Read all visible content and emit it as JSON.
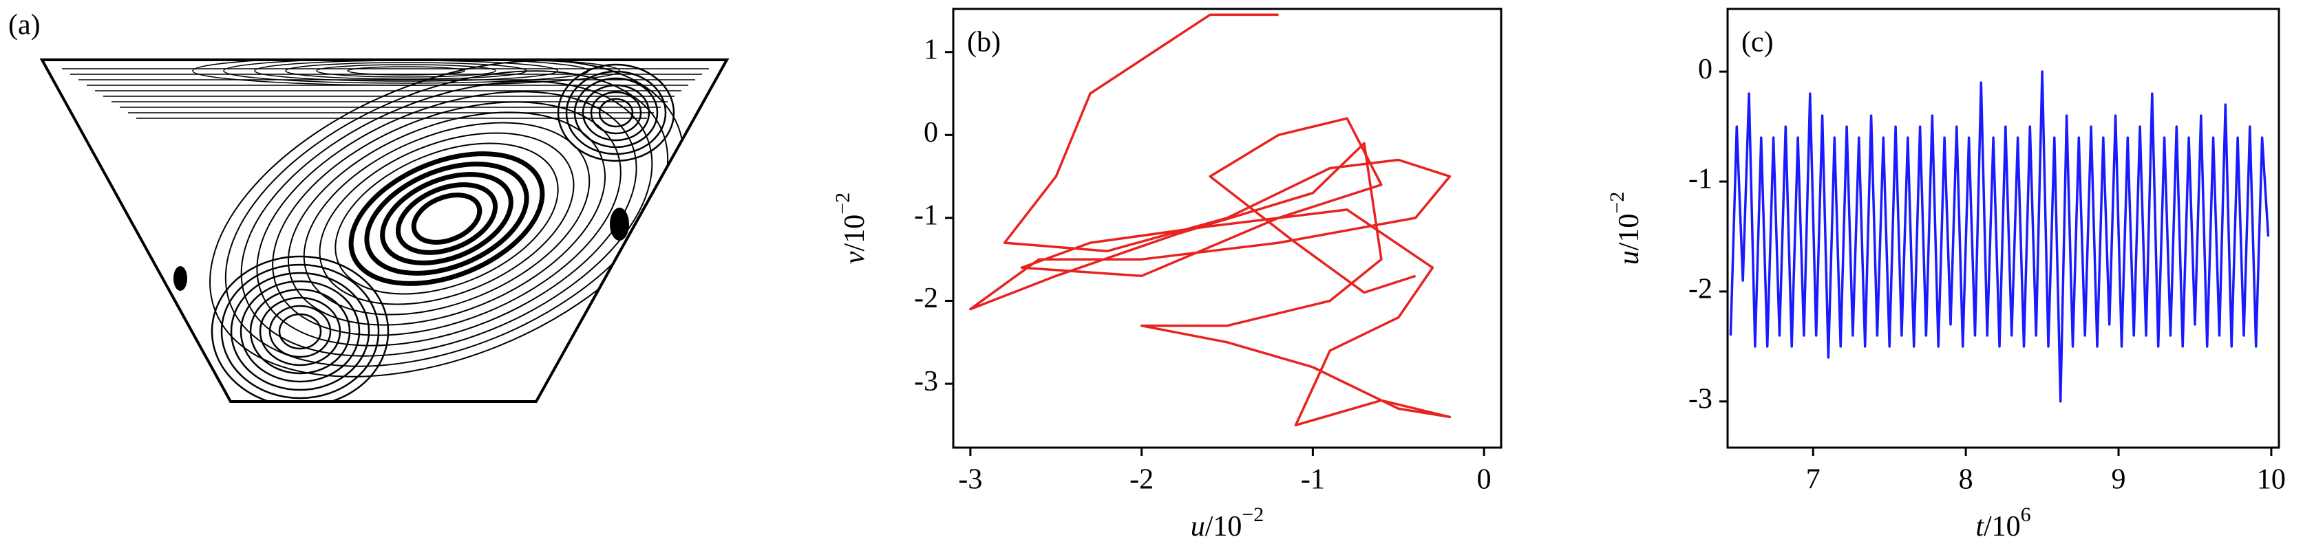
{
  "chart_data": [
    {
      "type": "streamline",
      "label": "(a)"
    },
    {
      "type": "line",
      "label": "(b)",
      "xlabel": {
        "symbol": "u",
        "scale": "/10",
        "exponent": "−2"
      },
      "ylabel": {
        "symbol": "v",
        "scale": "/10",
        "exponent": "−2"
      },
      "xlim": [
        -3.1,
        0.1
      ],
      "xticks": [
        -3,
        -2,
        -1,
        0
      ],
      "ylim": [
        -3.77,
        1.52
      ],
      "yticks": [
        -3,
        -2,
        -1,
        0,
        1
      ],
      "x": [
        -1.2,
        -1.45,
        -1.6,
        -2.3,
        -2.5,
        -2.8,
        -2.2,
        -1.5,
        -0.9,
        -0.5,
        -0.2,
        -0.4,
        -1.2,
        -2.0,
        -2.6,
        -3.0,
        -2.5,
        -1.8,
        -1.0,
        -0.7,
        -0.6,
        -0.9,
        -1.5,
        -2.0,
        -1.5,
        -1.0,
        -0.5,
        -0.2,
        -0.6,
        -1.1,
        -0.9,
        -0.5,
        -0.3,
        -0.8,
        -1.6,
        -2.3,
        -2.7,
        -2.0,
        -1.2,
        -0.6,
        -0.8,
        -1.2,
        -1.6,
        -1.1,
        -0.7,
        -0.4
      ],
      "series": [
        {
          "color": "#e8231f",
          "values": [
            1.45,
            1.45,
            1.45,
            0.5,
            -0.5,
            -1.3,
            -1.4,
            -1.0,
            -0.4,
            -0.3,
            -0.5,
            -1.0,
            -1.3,
            -1.5,
            -1.5,
            -2.1,
            -1.7,
            -1.2,
            -0.7,
            -0.1,
            -1.5,
            -2.0,
            -2.3,
            -2.3,
            -2.5,
            -2.8,
            -3.3,
            -3.4,
            -3.2,
            -3.5,
            -2.6,
            -2.2,
            -1.6,
            -0.9,
            -1.1,
            -1.3,
            -1.6,
            -1.7,
            -1.0,
            -0.6,
            0.2,
            0.0,
            -0.5,
            -1.3,
            -1.9,
            -1.7
          ]
        }
      ]
    },
    {
      "type": "line",
      "label": "(c)",
      "xlabel": {
        "symbol": "t",
        "scale": "/10",
        "exponent": "6"
      },
      "ylabel": {
        "symbol": "u",
        "scale": "/10",
        "exponent": "−2"
      },
      "xlim": [
        6.44,
        10.05
      ],
      "xticks": [
        7,
        8,
        9,
        10
      ],
      "ylim": [
        -3.42,
        0.57
      ],
      "yticks": [
        -3,
        -2,
        -1,
        0
      ],
      "x": [
        6.46,
        6.5,
        6.54,
        6.58,
        6.62,
        6.66,
        6.7,
        6.74,
        6.78,
        6.82,
        6.86,
        6.9,
        6.94,
        6.98,
        7.02,
        7.06,
        7.1,
        7.14,
        7.18,
        7.22,
        7.26,
        7.3,
        7.34,
        7.38,
        7.42,
        7.46,
        7.5,
        7.54,
        7.58,
        7.62,
        7.66,
        7.7,
        7.74,
        7.78,
        7.82,
        7.86,
        7.9,
        7.94,
        7.98,
        8.02,
        8.06,
        8.1,
        8.14,
        8.18,
        8.22,
        8.26,
        8.3,
        8.34,
        8.38,
        8.42,
        8.46,
        8.5,
        8.54,
        8.58,
        8.62,
        8.66,
        8.7,
        8.74,
        8.78,
        8.82,
        8.86,
        8.9,
        8.94,
        8.98,
        9.02,
        9.06,
        9.1,
        9.14,
        9.18,
        9.22,
        9.26,
        9.3,
        9.34,
        9.38,
        9.42,
        9.46,
        9.5,
        9.54,
        9.58,
        9.62,
        9.66,
        9.7,
        9.74,
        9.78,
        9.82,
        9.86,
        9.9,
        9.94,
        9.98
      ],
      "series": [
        {
          "color": "#1a1aff",
          "values": [
            -2.4,
            -0.5,
            -1.9,
            -0.2,
            -2.5,
            -0.6,
            -2.5,
            -0.6,
            -2.4,
            -0.5,
            -2.5,
            -0.6,
            -2.4,
            -0.2,
            -2.4,
            -0.4,
            -2.6,
            -0.6,
            -2.5,
            -0.5,
            -2.4,
            -0.6,
            -2.5,
            -0.4,
            -2.4,
            -0.6,
            -2.5,
            -0.5,
            -2.4,
            -0.6,
            -2.5,
            -0.5,
            -2.4,
            -0.4,
            -2.5,
            -0.6,
            -2.3,
            -0.5,
            -2.5,
            -0.6,
            -2.4,
            -0.1,
            -2.4,
            -0.6,
            -2.5,
            -0.5,
            -2.4,
            -0.6,
            -2.5,
            -0.5,
            -2.4,
            0.0,
            -2.5,
            -0.6,
            -3.0,
            -0.4,
            -2.5,
            -0.6,
            -2.4,
            -0.5,
            -2.5,
            -0.6,
            -2.3,
            -0.4,
            -2.5,
            -0.6,
            -2.4,
            -0.5,
            -2.4,
            -0.2,
            -2.5,
            -0.6,
            -2.4,
            -0.5,
            -2.5,
            -0.6,
            -2.3,
            -0.4,
            -2.5,
            -0.6,
            -2.4,
            -0.3,
            -2.5,
            -0.6,
            -2.4,
            -0.5,
            -2.5,
            -0.6,
            -1.5
          ]
        }
      ]
    }
  ]
}
